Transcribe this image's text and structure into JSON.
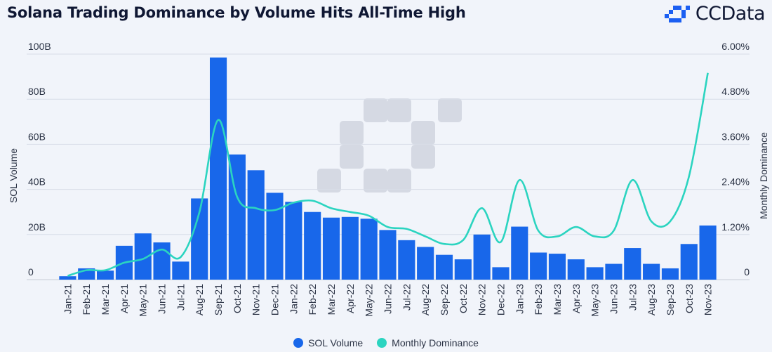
{
  "header": {
    "title": "Solana Trading Dominance by Volume Hits All-Time High",
    "brand": "CCData"
  },
  "colors": {
    "bar": "#1867ea",
    "line": "#2bd4c0",
    "brand_icon": "#1b5ff2",
    "watermark": "#d0d4de"
  },
  "chart_data": {
    "type": "bar",
    "title": "Solana Trading Dominance by Volume Hits All-Time High",
    "categories": [
      "Jan-21",
      "Feb-21",
      "Mar-21",
      "Apr-21",
      "May-21",
      "Jun-21",
      "Jul-21",
      "Aug-21",
      "Sep-21",
      "Oct-21",
      "Nov-21",
      "Dec-21",
      "Jan-22",
      "Feb-22",
      "Mar-22",
      "Apr-22",
      "May-22",
      "Jun-22",
      "Jul-22",
      "Aug-22",
      "Sep-22",
      "Oct-22",
      "Nov-22",
      "Dec-22",
      "Jan-23",
      "Feb-23",
      "Mar-23",
      "Apr-23",
      "May-23",
      "Jun-23",
      "Jul-23",
      "Aug-23",
      "Sep-23",
      "Oct-23",
      "Nov-23"
    ],
    "series": [
      {
        "name": "SOL Volume",
        "type": "bar",
        "axis": "left",
        "values": [
          1.5,
          5,
          4,
          15,
          20.5,
          16.5,
          8,
          36,
          98.5,
          55.5,
          48.5,
          38.5,
          34.5,
          30,
          27.5,
          27.8,
          27,
          22,
          17.5,
          14.5,
          11,
          9,
          20,
          5.5,
          23.5,
          12,
          11.5,
          9,
          5.5,
          7,
          14,
          7,
          5,
          15.8,
          24
        ]
      },
      {
        "name": "Monthly Dominance",
        "type": "line",
        "axis": "right",
        "values": [
          0.1,
          0.25,
          0.25,
          0.45,
          0.55,
          0.8,
          0.6,
          1.8,
          4.25,
          2.2,
          1.9,
          1.85,
          2.05,
          2.1,
          1.9,
          1.8,
          1.7,
          1.4,
          1.35,
          1.15,
          0.95,
          1.05,
          1.9,
          1.0,
          2.65,
          1.3,
          1.15,
          1.4,
          1.15,
          1.3,
          2.65,
          1.55,
          1.55,
          2.75,
          5.5
        ]
      }
    ],
    "ylabel": "SOL Volume",
    "y2label": "Monthly Dominance",
    "ylim": [
      0,
      100
    ],
    "y2lim": [
      0,
      6
    ],
    "yticks": [
      "0",
      "20B",
      "40B",
      "60B",
      "80B",
      "100B"
    ],
    "y2ticks": [
      "0",
      "1.20%",
      "2.40%",
      "3.60%",
      "4.80%",
      "6.00%"
    ],
    "grid": true,
    "legend_position": "bottom"
  }
}
